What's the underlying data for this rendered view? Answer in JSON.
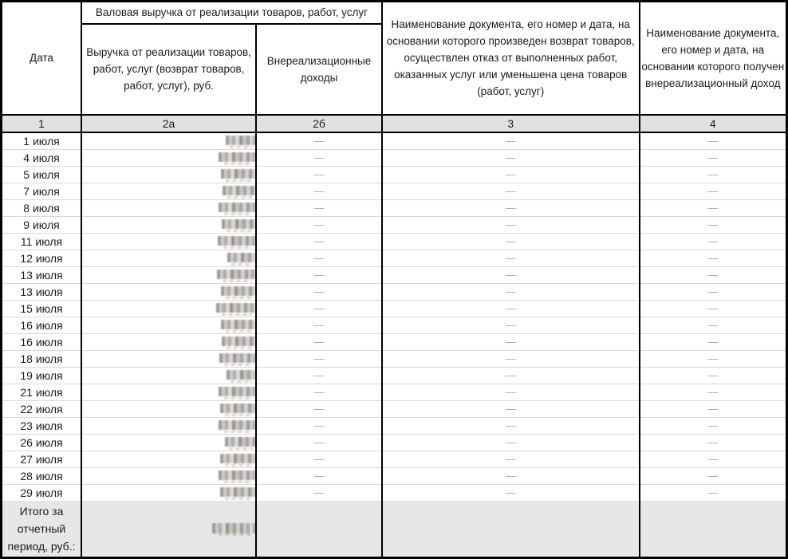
{
  "table": {
    "header": {
      "col_date": "Дата",
      "group_revenue": "Валовая выручка от реализации товаров, работ, услуг",
      "col_2a": "Выручка от реализации товаров, работ, услуг (возврат товаров, работ, услуг), руб.",
      "col_2b": "Внереализационные доходы",
      "col_3": "Наименование документа, его номер и дата, на основании которого произведен возврат товаров, осуществлен отказ от выполненных работ, оказанных услуг или уменьшена цена товаров (работ, услуг)",
      "col_4": "Наименование документа, его номер и дата, на основании которого получен внереализационный доход"
    },
    "column_numbers": [
      "1",
      "2а",
      "2б",
      "3",
      "4"
    ],
    "rows": [
      {
        "date": "1 июля",
        "revenue_redacted": true,
        "redacted_width": 37,
        "non_sales_income": "—",
        "doc_return": "—",
        "doc_income": "—"
      },
      {
        "date": "4 июля",
        "revenue_redacted": true,
        "redacted_width": 46,
        "non_sales_income": "—",
        "doc_return": "—",
        "doc_income": "—"
      },
      {
        "date": "5 июля",
        "revenue_redacted": true,
        "redacted_width": 43,
        "non_sales_income": "—",
        "doc_return": "—",
        "doc_income": "—"
      },
      {
        "date": "7 июля",
        "revenue_redacted": true,
        "redacted_width": 41,
        "non_sales_income": "—",
        "doc_return": "—",
        "doc_income": "—"
      },
      {
        "date": "8 июля",
        "revenue_redacted": true,
        "redacted_width": 46,
        "non_sales_income": "—",
        "doc_return": "—",
        "doc_income": "—"
      },
      {
        "date": "9 июля",
        "revenue_redacted": true,
        "redacted_width": 42,
        "non_sales_income": "—",
        "doc_return": "—",
        "doc_income": "—"
      },
      {
        "date": "11 июля",
        "revenue_redacted": true,
        "redacted_width": 47,
        "non_sales_income": "—",
        "doc_return": "—",
        "doc_income": "—"
      },
      {
        "date": "12 июля",
        "revenue_redacted": true,
        "redacted_width": 35,
        "non_sales_income": "—",
        "doc_return": "—",
        "doc_income": "—"
      },
      {
        "date": "13 июля",
        "revenue_redacted": true,
        "redacted_width": 48,
        "non_sales_income": "—",
        "doc_return": "—",
        "doc_income": "—"
      },
      {
        "date": "13 июля",
        "revenue_redacted": true,
        "redacted_width": 43,
        "non_sales_income": "—",
        "doc_return": "—",
        "doc_income": "—"
      },
      {
        "date": "15 июля",
        "revenue_redacted": true,
        "redacted_width": 49,
        "non_sales_income": "—",
        "doc_return": "—",
        "doc_income": "—"
      },
      {
        "date": "16 июля",
        "revenue_redacted": true,
        "redacted_width": 43,
        "non_sales_income": "—",
        "doc_return": "—",
        "doc_income": "—"
      },
      {
        "date": "16 июля",
        "revenue_redacted": true,
        "redacted_width": 42,
        "non_sales_income": "—",
        "doc_return": "—",
        "doc_income": "—"
      },
      {
        "date": "18 июля",
        "revenue_redacted": true,
        "redacted_width": 45,
        "non_sales_income": "—",
        "doc_return": "—",
        "doc_income": "—"
      },
      {
        "date": "19 июля",
        "revenue_redacted": true,
        "redacted_width": 36,
        "non_sales_income": "—",
        "doc_return": "—",
        "doc_income": "—"
      },
      {
        "date": "21 июля",
        "revenue_redacted": true,
        "redacted_width": 46,
        "non_sales_income": "—",
        "doc_return": "—",
        "doc_income": "—"
      },
      {
        "date": "22 июля",
        "revenue_redacted": true,
        "redacted_width": 44,
        "non_sales_income": "—",
        "doc_return": "—",
        "doc_income": "—"
      },
      {
        "date": "23 июля",
        "revenue_redacted": true,
        "redacted_width": 46,
        "non_sales_income": "—",
        "doc_return": "—",
        "doc_income": "—"
      },
      {
        "date": "26 июля",
        "revenue_redacted": true,
        "redacted_width": 38,
        "non_sales_income": "—",
        "doc_return": "—",
        "doc_income": "—"
      },
      {
        "date": "27 июля",
        "revenue_redacted": true,
        "redacted_width": 44,
        "non_sales_income": "—",
        "doc_return": "—",
        "doc_income": "—"
      },
      {
        "date": "28 июля",
        "revenue_redacted": true,
        "redacted_width": 46,
        "non_sales_income": "—",
        "doc_return": "—",
        "doc_income": "—"
      },
      {
        "date": "29 июля",
        "revenue_redacted": true,
        "redacted_width": 44,
        "non_sales_income": "—",
        "doc_return": "—",
        "doc_income": "—"
      }
    ],
    "total": {
      "label": "Итого за отчетный период, руб.:",
      "value_redacted": true,
      "redacted_width": 54
    },
    "colors": {
      "border_black": "#000000",
      "row_separator": "#d9d9d9",
      "numbers_row_bg": "#e1e1e1",
      "total_row_bg": "#e7e7e7",
      "dash_color": "#a8a8a8"
    }
  }
}
